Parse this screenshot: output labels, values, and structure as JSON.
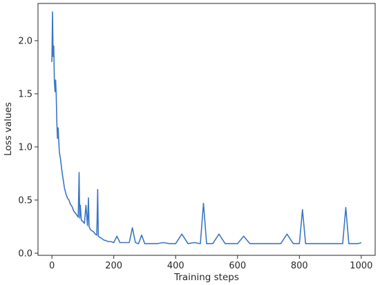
{
  "chart_data": {
    "type": "line",
    "title": "",
    "xlabel": "Training steps",
    "ylabel": "Loss values",
    "xlim": [
      -45,
      1045
    ],
    "ylim": [
      -0.02,
      2.35
    ],
    "xticks": [
      0,
      200,
      400,
      600,
      800,
      1000
    ],
    "yticks": [
      0.0,
      0.5,
      1.0,
      1.5,
      2.0
    ],
    "ytick_labels": [
      "0.0",
      "0.5",
      "1.0",
      "1.5",
      "2.0"
    ],
    "grid": false,
    "legend": "none",
    "colors": {
      "line": "#3a76c4",
      "axis": "#262626"
    },
    "series": [
      {
        "x": [
          0,
          2,
          4,
          6,
          8,
          10,
          12,
          14,
          16,
          18,
          20,
          24,
          28,
          32,
          36,
          40,
          45,
          50,
          55,
          60,
          65,
          70,
          75,
          80,
          85,
          88,
          90,
          92,
          95,
          100,
          105,
          110,
          115,
          118,
          120,
          125,
          130,
          135,
          140,
          145,
          148,
          150,
          155,
          160,
          165,
          170,
          175,
          180,
          190,
          200,
          210,
          220,
          230,
          240,
          250,
          260,
          270,
          280,
          290,
          300,
          320,
          340,
          360,
          380,
          400,
          420,
          440,
          460,
          480,
          490,
          500,
          520,
          540,
          560,
          580,
          600,
          620,
          640,
          660,
          680,
          700,
          720,
          740,
          760,
          780,
          800,
          810,
          820,
          840,
          860,
          880,
          900,
          920,
          940,
          950,
          960,
          980,
          990,
          1000
        ],
        "y": [
          1.8,
          2.27,
          1.85,
          1.95,
          1.62,
          1.52,
          1.63,
          1.48,
          1.22,
          1.08,
          1.18,
          0.95,
          0.88,
          0.78,
          0.7,
          0.62,
          0.56,
          0.52,
          0.5,
          0.46,
          0.44,
          0.4,
          0.38,
          0.36,
          0.34,
          0.76,
          0.33,
          0.45,
          0.31,
          0.3,
          0.28,
          0.45,
          0.26,
          0.52,
          0.25,
          0.22,
          0.21,
          0.2,
          0.18,
          0.17,
          0.6,
          0.16,
          0.15,
          0.14,
          0.13,
          0.12,
          0.12,
          0.11,
          0.11,
          0.1,
          0.16,
          0.1,
          0.1,
          0.1,
          0.1,
          0.24,
          0.1,
          0.09,
          0.17,
          0.09,
          0.09,
          0.09,
          0.1,
          0.09,
          0.09,
          0.18,
          0.09,
          0.1,
          0.09,
          0.47,
          0.09,
          0.09,
          0.18,
          0.09,
          0.09,
          0.09,
          0.16,
          0.09,
          0.09,
          0.09,
          0.09,
          0.09,
          0.09,
          0.18,
          0.09,
          0.09,
          0.41,
          0.09,
          0.09,
          0.09,
          0.09,
          0.09,
          0.09,
          0.09,
          0.43,
          0.09,
          0.09,
          0.09,
          0.1
        ]
      }
    ]
  }
}
